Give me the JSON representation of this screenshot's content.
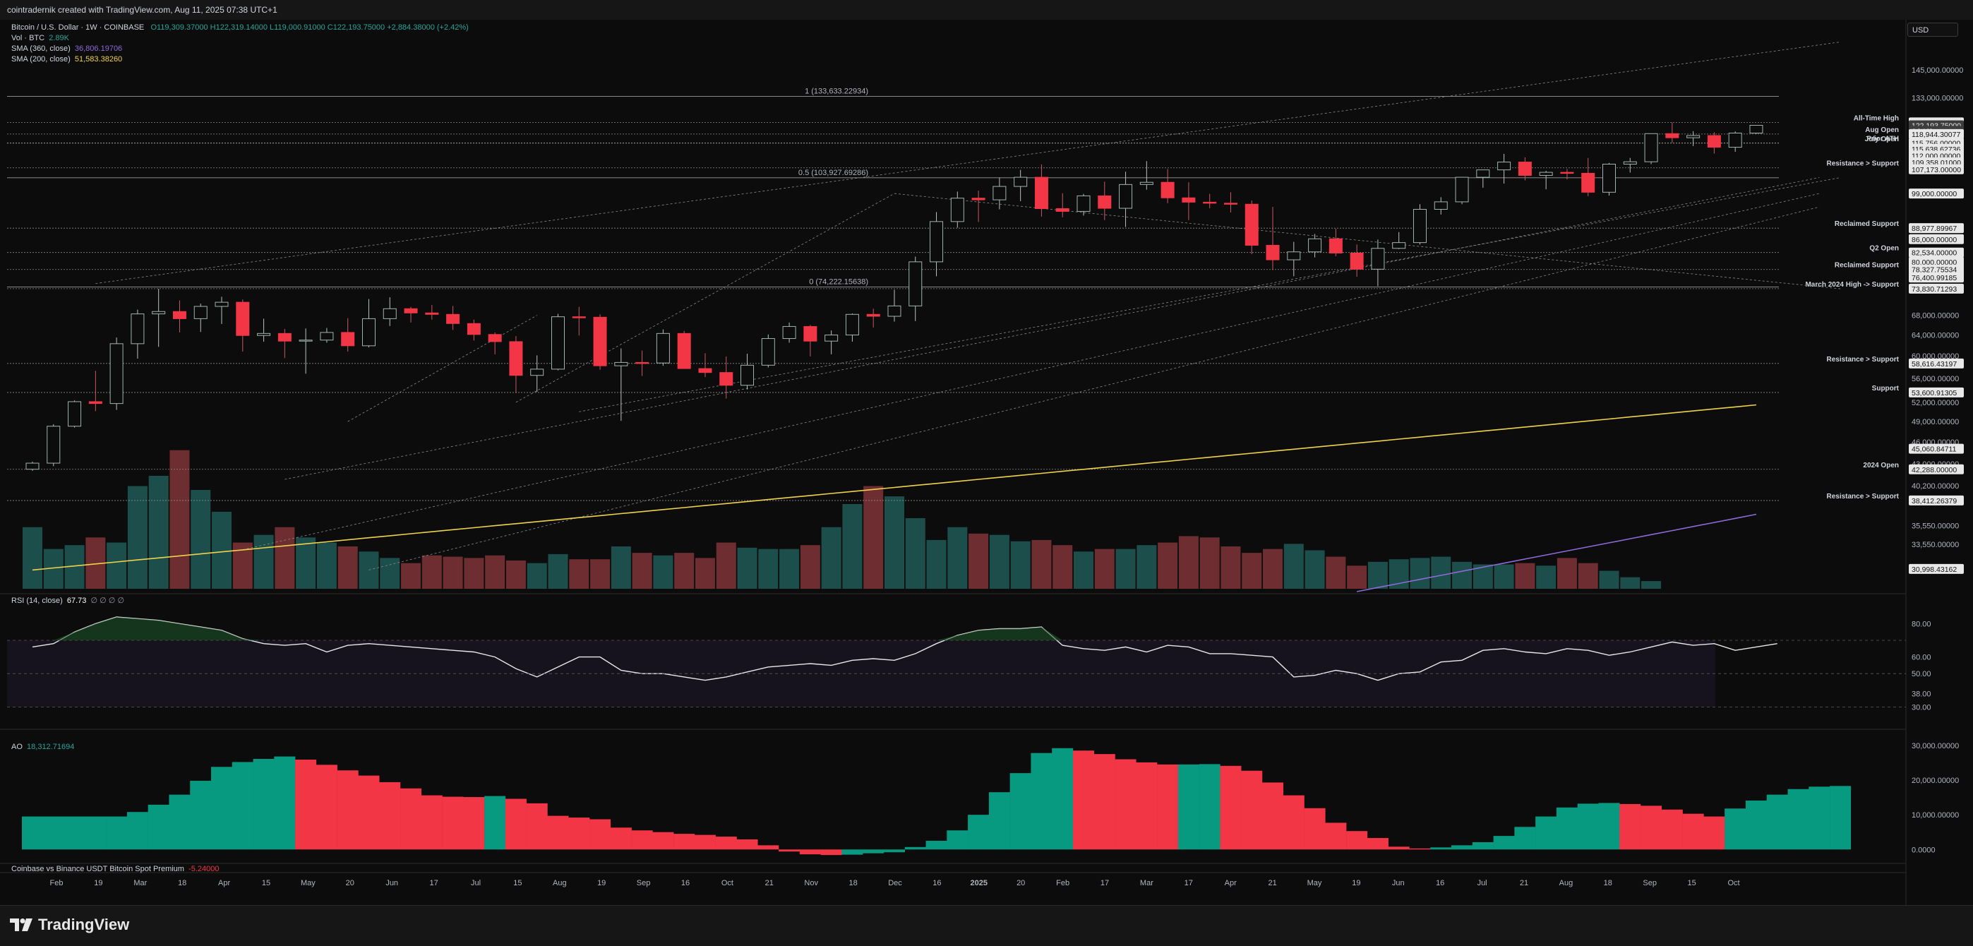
{
  "header": {
    "attribution": "cointradernik created with TradingView.com, Aug 11, 2025 07:38 UTC+1"
  },
  "legend": {
    "symbol": "Bitcoin / U.S. Dollar · 1W · COINBASE",
    "ohlc": "O119,309.37000  H122,319.14000  L119,000.91000  C122,193.75000  +2,884.38000 (+2.42%)",
    "volume_label": "Vol · BTC",
    "volume_value": "2.89K",
    "sma360_label": "SMA (360, close)",
    "sma360_value": "36,806.19706",
    "sma200_label": "SMA (200, close)",
    "sma200_value": "51,583.38260"
  },
  "currency_button": "USD",
  "rsi_legend": {
    "label": "RSI (14, close)",
    "value": "67.73",
    "extra": "∅ ∅ ∅ ∅"
  },
  "ao_legend": {
    "label": "AO",
    "value": "18,312.71694"
  },
  "premium_legend": {
    "label": "Coinbase vs Binance USDT Bitcoin Spot Premium",
    "value": "-5.24000"
  },
  "brand": "TradingView",
  "chart_data": {
    "type": "candlestick",
    "interval": "1W",
    "y_scale": "log",
    "y_range": [
      29000,
      162000
    ],
    "start_date": "2024-01-29",
    "candles": [
      [
        42300,
        43300,
        42100,
        43100
      ],
      [
        43100,
        48600,
        42700,
        48300
      ],
      [
        48300,
        52300,
        48100,
        52100
      ],
      [
        52100,
        57300,
        50600,
        51800
      ],
      [
        51800,
        63500,
        50800,
        62300
      ],
      [
        62300,
        69200,
        59500,
        68300
      ],
      [
        68300,
        73800,
        61700,
        68800
      ],
      [
        68800,
        71200,
        64500,
        67300
      ],
      [
        67300,
        70500,
        64600,
        69900
      ],
      [
        69900,
        72000,
        66200,
        70800
      ],
      [
        70800,
        71400,
        60800,
        63900
      ],
      [
        63900,
        67300,
        62700,
        64300
      ],
      [
        64300,
        65200,
        59600,
        62800
      ],
      [
        62800,
        65300,
        56800,
        63000
      ],
      [
        63000,
        65400,
        62500,
        64500
      ],
      [
        64500,
        67400,
        60800,
        61900
      ],
      [
        61900,
        71500,
        61600,
        67300
      ],
      [
        67300,
        71900,
        65800,
        69400
      ],
      [
        69400,
        69800,
        66500,
        68500
      ],
      [
        68500,
        70200,
        67100,
        68200
      ],
      [
        68200,
        70000,
        65000,
        66300
      ],
      [
        66300,
        67100,
        62900,
        64100
      ],
      [
        64100,
        64500,
        60300,
        62700
      ],
      [
        62700,
        63800,
        53500,
        56500
      ],
      [
        56500,
        60100,
        53700,
        57600
      ],
      [
        57600,
        68300,
        57400,
        67700
      ],
      [
        67700,
        69800,
        63900,
        67600
      ],
      [
        67600,
        68200,
        57500,
        58200
      ],
      [
        58200,
        61400,
        49100,
        58800
      ],
      [
        58800,
        61000,
        56400,
        58700
      ],
      [
        58700,
        65100,
        58200,
        64300
      ],
      [
        64300,
        64800,
        57700,
        57700
      ],
      [
        57700,
        60500,
        56200,
        57000
      ],
      [
        57000,
        59900,
        52600,
        54800
      ],
      [
        54800,
        60400,
        54100,
        58300
      ],
      [
        58300,
        64100,
        57900,
        63300
      ],
      [
        63300,
        66500,
        62500,
        65700
      ],
      [
        65700,
        66000,
        59900,
        62800
      ],
      [
        62800,
        64900,
        60300,
        64000
      ],
      [
        64000,
        68400,
        62700,
        68200
      ],
      [
        68200,
        69400,
        65500,
        67800
      ],
      [
        67800,
        73600,
        66700,
        70000
      ],
      [
        70000,
        81500,
        66800,
        80200
      ],
      [
        80200,
        93500,
        76700,
        90800
      ],
      [
        90800,
        99600,
        89100,
        97600
      ],
      [
        97600,
        99900,
        90700,
        97100
      ],
      [
        97100,
        104000,
        94300,
        101200
      ],
      [
        101200,
        106500,
        96700,
        104100
      ],
      [
        104100,
        108300,
        92200,
        94500
      ],
      [
        94500,
        99100,
        92000,
        93700
      ],
      [
        93700,
        98900,
        92500,
        98300
      ],
      [
        98300,
        102700,
        91200,
        94600
      ],
      [
        94600,
        105900,
        89300,
        101800
      ],
      [
        101800,
        109400,
        100200,
        102500
      ],
      [
        102500,
        106800,
        96100,
        97700
      ],
      [
        97700,
        102500,
        91200,
        96400
      ],
      [
        96400,
        98900,
        94600,
        96100
      ],
      [
        96100,
        99400,
        93400,
        95800
      ],
      [
        95800,
        96900,
        82100,
        84400
      ],
      [
        84400,
        95000,
        78200,
        80700
      ],
      [
        80700,
        85300,
        76700,
        82700
      ],
      [
        82700,
        87400,
        81300,
        86100
      ],
      [
        86100,
        88800,
        81600,
        82400
      ],
      [
        82400,
        84600,
        76600,
        78400
      ],
      [
        78400,
        85900,
        74400,
        83600
      ],
      [
        83600,
        87900,
        83400,
        85100
      ],
      [
        85100,
        95800,
        84600,
        94300
      ],
      [
        94300,
        97900,
        92800,
        96500
      ],
      [
        96500,
        104000,
        95800,
        104100
      ],
      [
        104100,
        106000,
        100800,
        106500
      ],
      [
        106500,
        111900,
        102100,
        109100
      ],
      [
        109100,
        110700,
        103100,
        104700
      ],
      [
        104700,
        106200,
        100300,
        105700
      ],
      [
        105700,
        106800,
        103400,
        105400
      ],
      [
        105400,
        110500,
        98200,
        99400
      ],
      [
        99400,
        108800,
        98400,
        108400
      ],
      [
        108400,
        110500,
        105600,
        109200
      ],
      [
        109200,
        118900,
        108400,
        119100
      ],
      [
        119100,
        123300,
        115800,
        117600
      ],
      [
        117600,
        120000,
        114600,
        118400
      ],
      [
        118400,
        119600,
        112000,
        114200
      ],
      [
        114200,
        119900,
        112600,
        119300
      ],
      [
        119300,
        122320,
        119000,
        122194
      ]
    ],
    "volume": [
      48,
      31,
      34,
      40,
      36,
      80,
      88,
      108,
      77,
      60,
      36,
      42,
      48,
      40,
      36,
      33,
      29,
      24,
      20,
      26,
      25,
      24,
      26,
      22,
      20,
      27,
      23,
      23,
      33,
      28,
      26,
      28,
      24,
      36,
      32,
      31,
      31,
      34,
      48,
      66,
      80,
      72,
      55,
      38,
      48,
      43,
      42,
      37,
      38,
      34,
      29,
      31,
      31,
      34,
      36,
      41,
      40,
      33,
      28,
      31,
      35,
      30,
      25,
      18,
      21,
      23,
      24,
      25,
      21,
      19,
      19,
      20,
      18,
      24,
      20,
      14,
      9,
      6
    ],
    "horizontal_levels": [
      {
        "label": "All-Time High",
        "price": "123,303.21291"
      },
      {
        "label": "Aug Open",
        "price": "118,944.30077"
      },
      {
        "label": "Prior ATH",
        "price": "115,756.00000"
      },
      {
        "label": "July Open",
        "price": "115,638.62736"
      },
      {
        "label": "Resistance > Support",
        "price": "107,173.00000"
      },
      {
        "label": "Reclaimed Support",
        "price": "88,977.89967"
      },
      {
        "label": "Q2 Open",
        "price": "82,534.00000"
      },
      {
        "label": "Reclaimed Support",
        "price": "78,327.75534"
      },
      {
        "label": "March 2024 High -> Support",
        "price": "73,830.71293"
      },
      {
        "label": "Resistance > Support",
        "price": "58,616.43197"
      },
      {
        "label": "Support",
        "price": "53,600.91305"
      },
      {
        "label": "2024 Open",
        "price": "42,288.00000"
      },
      {
        "label": "Resistance > Support",
        "price": "38,412.26379"
      }
    ],
    "fib_levels": [
      {
        "label": "1 (133,633.22934)",
        "value": 133633
      },
      {
        "label": "0.5 (103,927.69286)",
        "value": 103928
      },
      {
        "label": "0 (74,222.15638)",
        "value": 74222
      }
    ],
    "price_tags": [
      {
        "text": "123,303.21291",
        "price": 123303,
        "style": "white"
      },
      {
        "text": "122,193.75000",
        "price": 122194,
        "style": "grey"
      },
      {
        "text": "6d 18h",
        "price": 120100,
        "style": "grey"
      },
      {
        "text": "118,944.30077",
        "price": 118944,
        "style": "white"
      },
      {
        "text": "115,756.00000",
        "price": 115756,
        "style": "white"
      },
      {
        "text": "115,638.62736",
        "price": 113650,
        "style": "white"
      },
      {
        "text": "112,000.00000",
        "price": 111300,
        "style": "white"
      },
      {
        "text": "109,358.01000",
        "price": 109000,
        "style": "white"
      },
      {
        "text": "107,173.00000",
        "price": 106700,
        "style": "white"
      },
      {
        "text": "99,000.00000",
        "price": 99000,
        "style": "white"
      },
      {
        "text": "88,977.89967",
        "price": 88978,
        "style": "white"
      },
      {
        "text": "86,000.00000",
        "price": 86000,
        "style": "white"
      },
      {
        "text": "82,534.00000",
        "price": 82534,
        "style": "white"
      },
      {
        "text": "80,000.00000",
        "price": 80200,
        "style": "white"
      },
      {
        "text": "78,327.75534",
        "price": 78328,
        "style": "white"
      },
      {
        "text": "76,400.99185",
        "price": 76401,
        "style": "white"
      },
      {
        "text": "73,830.71293",
        "price": 73831,
        "style": "white"
      },
      {
        "text": "58,616.43197",
        "price": 58616,
        "style": "white"
      },
      {
        "text": "53,600.91305",
        "price": 53601,
        "style": "white"
      },
      {
        "text": "45,060.84711",
        "price": 45061,
        "style": "white"
      },
      {
        "text": "42,288.00000",
        "price": 42288,
        "style": "white"
      },
      {
        "text": "38,412.26379",
        "price": 38412,
        "style": "white"
      },
      {
        "text": "30,998.43162",
        "price": 31100,
        "style": "white"
      }
    ],
    "y_ticks": [
      "145,000.00000",
      "133,000.00000",
      "99,000.00000",
      "86,000.00000",
      "68,000.00000",
      "64,000.00000",
      "60,000.00000",
      "56,000.00000",
      "52,000.00000",
      "49,000.00000",
      "46,000.00000",
      "43,000.00000",
      "40,200.00000",
      "35,550.00000",
      "33,550.00000"
    ],
    "x_ticks": [
      "Feb",
      "19",
      "Mar",
      "18",
      "Apr",
      "15",
      "May",
      "20",
      "Jun",
      "17",
      "Jul",
      "15",
      "Aug",
      "19",
      "Sep",
      "16",
      "Oct",
      "21",
      "Nov",
      "18",
      "Dec",
      "16",
      "2025",
      "20",
      "Feb",
      "17",
      "Mar",
      "17",
      "Apr",
      "21",
      "May",
      "19",
      "Jun",
      "16",
      "Jul",
      "21",
      "Aug",
      "18",
      "Sep",
      "15",
      "Oct"
    ],
    "rsi": {
      "ticks": [
        "80.00",
        "60.00",
        "50.00",
        "38.00",
        "30.00"
      ],
      "values": [
        66,
        68,
        75,
        80,
        84,
        83,
        82,
        80,
        78,
        76,
        71,
        68,
        67,
        68,
        63,
        67,
        68,
        67,
        66,
        65,
        64,
        63,
        60,
        53,
        48,
        54,
        60,
        60,
        52,
        50,
        50,
        48,
        46,
        48,
        51,
        54,
        55,
        56,
        55,
        58,
        59,
        58,
        62,
        68,
        73,
        76,
        77,
        77,
        78,
        67,
        65,
        64,
        66,
        63,
        67,
        66,
        62,
        62,
        61,
        60,
        48,
        49,
        52,
        50,
        46,
        50,
        51,
        57,
        58,
        64,
        65,
        63,
        62,
        65,
        64,
        61,
        63,
        66,
        69,
        67,
        68,
        64,
        66,
        68
      ],
      "overbought": 70,
      "midline": 50,
      "oversold": 30
    },
    "ao": {
      "ticks": [
        "30,000.00000",
        "20,000.00000",
        "10,000.00000",
        "0.0000"
      ],
      "values": [
        9500,
        9500,
        9500,
        9500,
        9500,
        10800,
        12900,
        15800,
        19800,
        23800,
        25200,
        26100,
        26800,
        25900,
        24400,
        22800,
        21300,
        19400,
        17600,
        15600,
        15200,
        15100,
        15400,
        14600,
        13300,
        9700,
        9200,
        8700,
        6300,
        5500,
        5000,
        4500,
        4200,
        3700,
        2900,
        1200,
        -600,
        -1400,
        -1600,
        -1500,
        -1100,
        -800,
        700,
        2500,
        5500,
        10000,
        16500,
        22000,
        27800,
        29200,
        28500,
        27500,
        26000,
        25100,
        24500,
        24500,
        24600,
        24100,
        22700,
        19300,
        15600,
        11900,
        7700,
        5300,
        3300,
        800,
        300,
        600,
        1200,
        2100,
        3900,
        6500,
        9500,
        12100,
        13200,
        13400,
        13100,
        12600,
        11500,
        10300,
        9500,
        11800,
        14100,
        15800,
        17400,
        18100,
        18300
      ]
    }
  }
}
